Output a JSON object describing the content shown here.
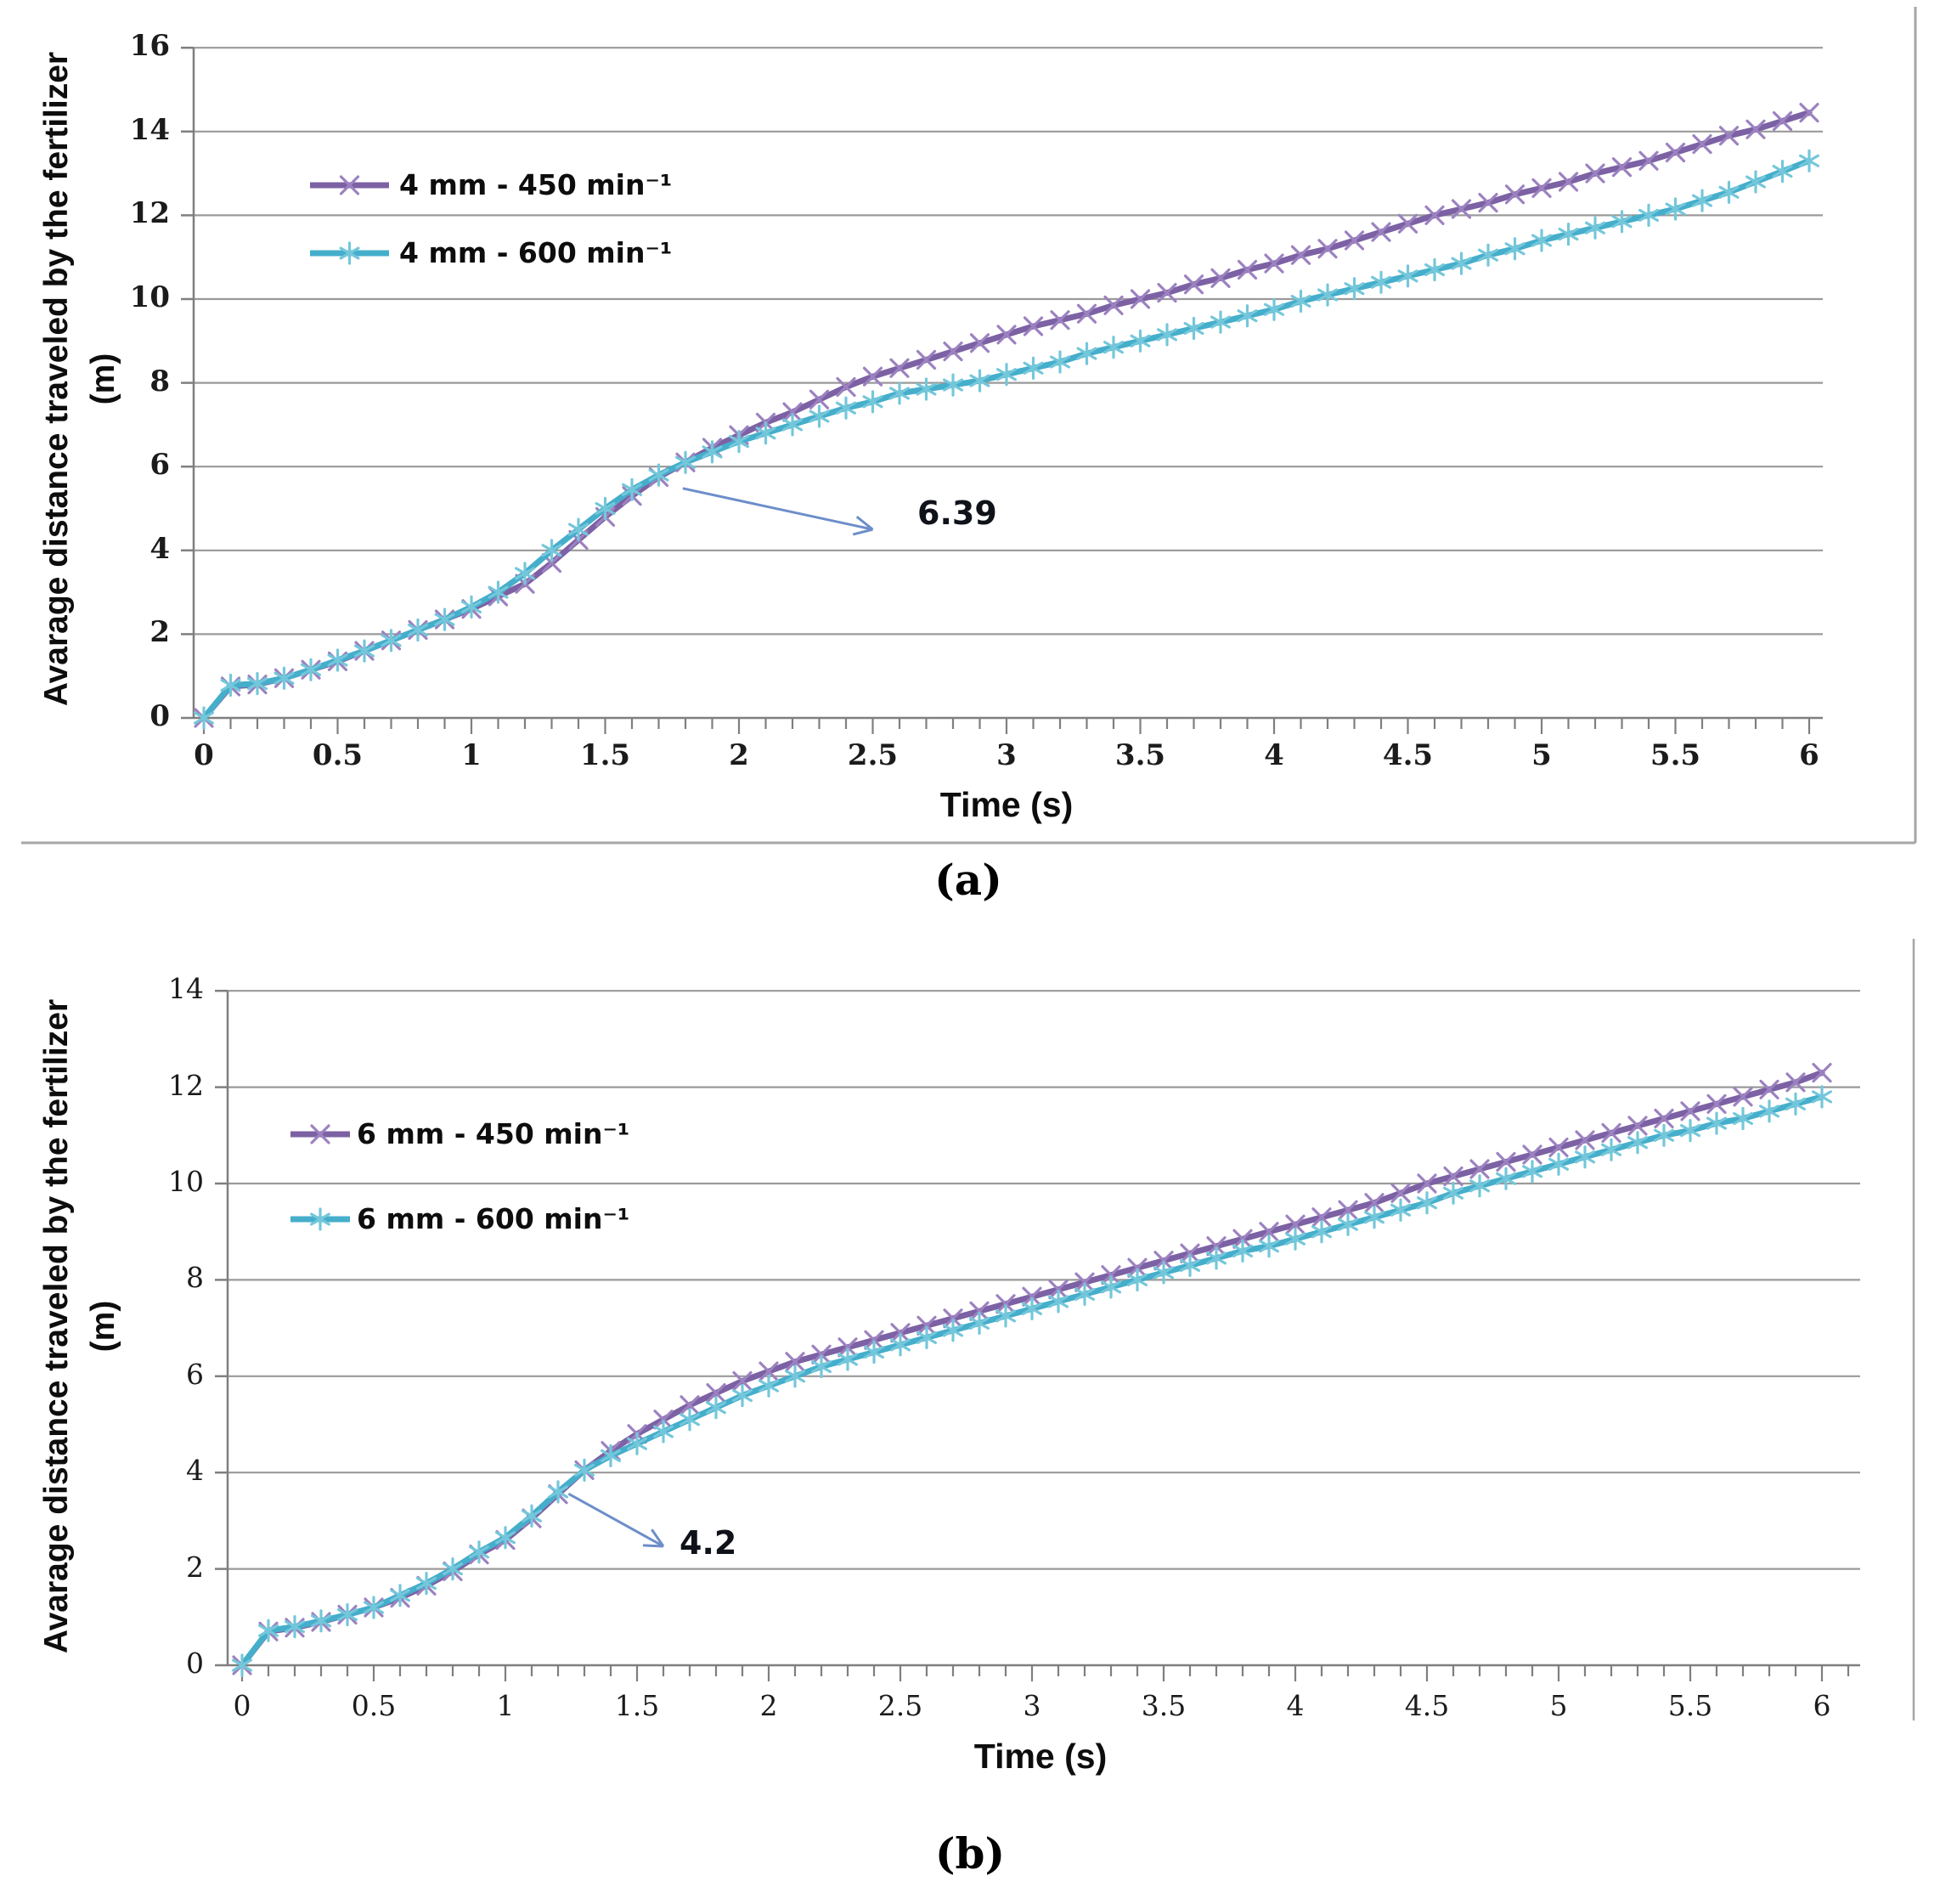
{
  "figure": {
    "caption_a": "(a)",
    "caption_b": "(b)"
  },
  "colors": {
    "series_450": "#7C61A4",
    "series_450_marker": "#9C82C0",
    "series_600": "#45AECB",
    "series_600_marker": "#74C7DA",
    "gridline": "#9A9A9A",
    "axis": "#7F7F7F",
    "panel_border": "#A6A6A6",
    "annotation_arrow": "#6C8EC9",
    "text": "#0D0D0D"
  },
  "chart_data": [
    {
      "id": "a",
      "type": "line",
      "title": "",
      "xlabel": "Time (s)",
      "ylabel": "Avarage distance traveled by the fertilizer (m)",
      "xlim": [
        0,
        6
      ],
      "ylim": [
        0,
        16
      ],
      "grid": "horizontal",
      "grid_step": 2,
      "legend_position": "upper-left-inside",
      "x_tick_labels": [
        "0",
        "0.5",
        "1",
        "1.5",
        "2",
        "2.5",
        "3",
        "3.5",
        "4",
        "4.5",
        "5",
        "5.5",
        "6"
      ],
      "y_tick_labels": [
        "0",
        "2",
        "4",
        "6",
        "8",
        "10",
        "12",
        "14",
        "16"
      ],
      "x_start": 0,
      "x_step": 0.1,
      "annotation": {
        "text": "6.39",
        "arrow_from": [
          1.79,
          5.48
        ],
        "arrow_to": [
          2.5,
          4.5
        ],
        "text_at": [
          2.67,
          5.31
        ]
      },
      "series": [
        {
          "name": "4 mm - 450 min⁻¹",
          "marker": "x",
          "color": "#7C61A4",
          "marker_color": "#9C82C0",
          "values": [
            0,
            0.75,
            0.8,
            0.95,
            1.15,
            1.35,
            1.6,
            1.85,
            2.1,
            2.35,
            2.6,
            2.9,
            3.2,
            3.7,
            4.25,
            4.8,
            5.3,
            5.75,
            6.1,
            6.45,
            6.75,
            7.05,
            7.3,
            7.6,
            7.9,
            8.15,
            8.35,
            8.55,
            8.75,
            8.95,
            9.15,
            9.35,
            9.5,
            9.65,
            9.85,
            10.0,
            10.15,
            10.35,
            10.5,
            10.7,
            10.85,
            11.05,
            11.2,
            11.4,
            11.6,
            11.8,
            12.0,
            12.15,
            12.3,
            12.5,
            12.65,
            12.8,
            13.0,
            13.15,
            13.3,
            13.5,
            13.7,
            13.9,
            14.05,
            14.25,
            14.45
          ]
        },
        {
          "name": "4 mm - 600 min⁻¹",
          "marker": "asterisk",
          "color": "#45AECB",
          "marker_color": "#74C7DA",
          "values": [
            0,
            0.78,
            0.82,
            0.95,
            1.15,
            1.38,
            1.6,
            1.85,
            2.1,
            2.35,
            2.65,
            3.0,
            3.45,
            4.0,
            4.5,
            5.0,
            5.45,
            5.8,
            6.1,
            6.35,
            6.6,
            6.8,
            7.0,
            7.2,
            7.4,
            7.55,
            7.75,
            7.85,
            7.95,
            8.05,
            8.2,
            8.35,
            8.5,
            8.7,
            8.85,
            9.0,
            9.15,
            9.3,
            9.45,
            9.6,
            9.75,
            9.95,
            10.1,
            10.25,
            10.4,
            10.55,
            10.7,
            10.85,
            11.05,
            11.2,
            11.4,
            11.55,
            11.7,
            11.85,
            12.0,
            12.15,
            12.35,
            12.55,
            12.8,
            13.05,
            13.3
          ]
        }
      ]
    },
    {
      "id": "b",
      "type": "line",
      "title": "",
      "xlabel": "Time (s)",
      "ylabel": "Avarage distance traveled by the fertilizer (m)",
      "xlim": [
        0,
        6
      ],
      "ylim": [
        0,
        14
      ],
      "grid": "horizontal",
      "grid_step": 2,
      "legend_position": "upper-left-inside",
      "x_tick_labels": [
        "0",
        "0.5",
        "1",
        "1.5",
        "2",
        "2.5",
        "3",
        "3.5",
        "4",
        "4.5",
        "5",
        "5.5",
        "6"
      ],
      "y_tick_labels": [
        "0",
        "2",
        "4",
        "6",
        "8",
        "10",
        "12",
        "14"
      ],
      "x_start": 0,
      "x_step": 0.1,
      "annotation": {
        "text": "4.2",
        "arrow_from": [
          1.24,
          3.56
        ],
        "arrow_to": [
          1.6,
          2.47
        ],
        "text_at": [
          1.66,
          2.91
        ]
      },
      "series": [
        {
          "name": "6 mm - 450 min⁻¹",
          "marker": "x",
          "color": "#7C61A4",
          "marker_color": "#9C82C0",
          "values": [
            0,
            0.7,
            0.78,
            0.9,
            1.05,
            1.2,
            1.4,
            1.65,
            1.95,
            2.3,
            2.6,
            3.05,
            3.55,
            4.05,
            4.45,
            4.8,
            5.1,
            5.4,
            5.65,
            5.9,
            6.1,
            6.3,
            6.45,
            6.6,
            6.75,
            6.9,
            7.05,
            7.2,
            7.35,
            7.5,
            7.65,
            7.8,
            7.95,
            8.1,
            8.25,
            8.4,
            8.55,
            8.7,
            8.85,
            9.0,
            9.15,
            9.3,
            9.45,
            9.6,
            9.8,
            10.0,
            10.15,
            10.3,
            10.45,
            10.6,
            10.75,
            10.9,
            11.05,
            11.2,
            11.35,
            11.5,
            11.65,
            11.8,
            11.95,
            12.1,
            12.3
          ]
        },
        {
          "name": "6 mm - 600 min⁻¹",
          "marker": "asterisk",
          "color": "#45AECB",
          "marker_color": "#74C7DA",
          "values": [
            0,
            0.72,
            0.8,
            0.92,
            1.05,
            1.2,
            1.45,
            1.7,
            2.0,
            2.35,
            2.65,
            3.1,
            3.6,
            4.05,
            4.35,
            4.6,
            4.85,
            5.1,
            5.35,
            5.6,
            5.8,
            6.0,
            6.2,
            6.35,
            6.5,
            6.65,
            6.8,
            6.95,
            7.1,
            7.25,
            7.4,
            7.55,
            7.7,
            7.85,
            8.0,
            8.15,
            8.3,
            8.45,
            8.6,
            8.7,
            8.85,
            9.0,
            9.15,
            9.3,
            9.45,
            9.6,
            9.8,
            9.95,
            10.1,
            10.25,
            10.4,
            10.55,
            10.7,
            10.85,
            11.0,
            11.1,
            11.25,
            11.35,
            11.5,
            11.65,
            11.8
          ]
        }
      ]
    }
  ]
}
